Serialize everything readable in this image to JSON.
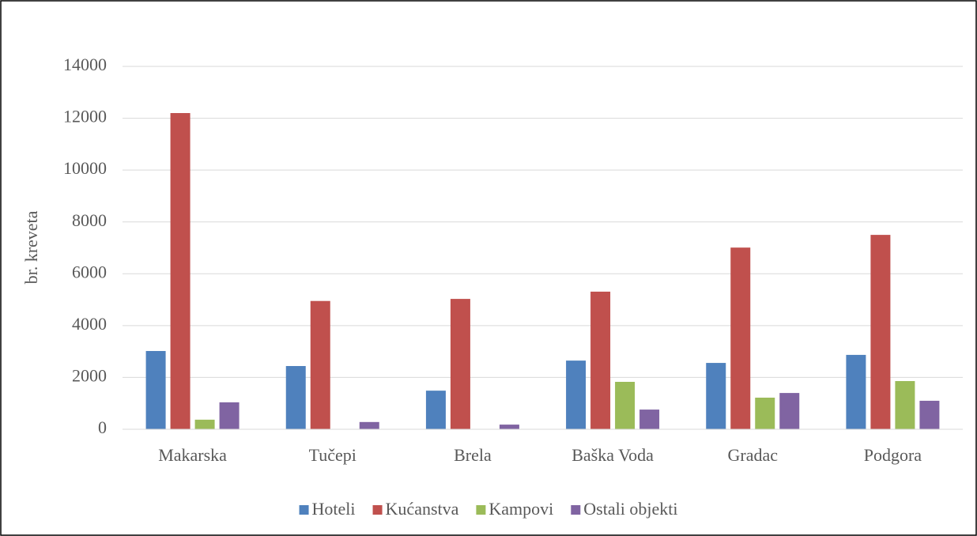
{
  "chart_data": {
    "type": "bar",
    "y_label": "br. kreveta",
    "categories": [
      "Makarska",
      "Tučepi",
      "Brela",
      "Baška Voda",
      "Gradac",
      "Podgora"
    ],
    "series": [
      {
        "name": "Hoteli",
        "color": "#4f81bd",
        "values": [
          3020,
          2440,
          1490,
          2650,
          2560,
          2870
        ]
      },
      {
        "name": "Kućanstva",
        "color": "#c0504d",
        "values": [
          12200,
          4950,
          5030,
          5310,
          7010,
          7500
        ]
      },
      {
        "name": "Kampovi",
        "color": "#9bbb59",
        "values": [
          370,
          0,
          0,
          1830,
          1220,
          1860
        ]
      },
      {
        "name": "Ostali objekti",
        "color": "#8064a2",
        "values": [
          1040,
          280,
          180,
          760,
          1400,
          1100
        ]
      }
    ],
    "ylim": [
      0,
      14000
    ],
    "yticks": [
      0,
      2000,
      4000,
      6000,
      8000,
      10000,
      12000,
      14000
    ],
    "grid": true,
    "legend": "bottom"
  }
}
